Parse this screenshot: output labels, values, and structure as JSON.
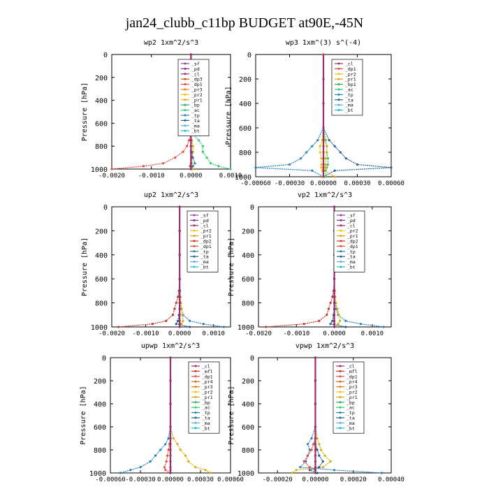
{
  "title": "jan24_clubb_c11bp  BUDGET at90E,-45N",
  "colors": {
    "_sf": "#8e44ad",
    "_pd": "#8e2c8e",
    "_cl": "#9b2d6b",
    "_dp2": "#c0392b",
    "_dp1": "#e74c3c",
    "_dp3": "#d35400",
    "_pr3": "#e67e22",
    "_pr2": "#f1c40f",
    "_pr1": "#d4ac0d",
    "_bp": "#27ae60",
    "_bp1": "#27ae60",
    "_ac": "#2ecc71",
    "_tp": "#2980b9",
    "_ta": "#1f618d",
    "_ma": "#5dade2",
    "_bt": "#17becf",
    "_mfl": "#c0392b",
    "_dp4": "#a93226",
    "_pr4": "#ca6f1e",
    "_dp2b": "#2ecc71",
    "_dp1b": "#58d68d"
  },
  "chart_data": [
    {
      "type": "line",
      "title": "wp2   1xm^2/s^3",
      "ylabel": "Pressure [hPa]",
      "ylim": [
        1000,
        0
      ],
      "xlim": [
        -0.002,
        0.001
      ],
      "xticks": [
        -0.002,
        -0.001,
        0.0,
        0.001
      ],
      "xtick_labels": [
        "-0.0020",
        "-0.0010",
        "0.0000",
        "0.0010"
      ],
      "yticks": [
        0,
        200,
        400,
        600,
        800,
        1000
      ],
      "ytick_labels": [
        "0",
        "200",
        "400",
        "600",
        "800",
        "1000"
      ],
      "legend": [
        "_sf",
        "_pd",
        "_cl",
        "_dp3",
        "_dp1",
        "_pr3",
        "_pr2",
        "_pr1",
        "_bp",
        "_ac",
        "_tp",
        "_ta",
        "_ma",
        "_bt"
      ],
      "pressure": [
        0,
        200,
        400,
        600,
        700,
        750,
        800,
        850,
        900,
        950,
        975,
        1000
      ],
      "series": [
        {
          "name": "_dp1",
          "values": [
            0,
            0,
            0,
            0,
            0,
            -5e-05,
            -0.0001,
            -0.0002,
            -0.0004,
            -0.0007,
            -0.0012,
            -0.002
          ]
        },
        {
          "name": "_ac",
          "values": [
            0,
            0,
            0,
            0,
            5e-05,
            0.0002,
            0.0003,
            0.0003,
            0.0004,
            0.0005,
            0.0007,
            0.001
          ]
        },
        {
          "name": "_pr1",
          "values": [
            0,
            0,
            0,
            0,
            0,
            2e-05,
            5e-05,
            5e-05,
            3e-05,
            2e-05,
            3e-05,
            5e-05
          ]
        },
        {
          "name": "_tp",
          "values": [
            0,
            0,
            0,
            0,
            0,
            0,
            0,
            2e-05,
            5e-05,
            0.0001,
            5e-05,
            0
          ]
        },
        {
          "name": "_cl",
          "values": [
            0,
            0,
            0,
            0,
            0,
            0,
            0,
            0,
            2e-05,
            0,
            -2e-05,
            0
          ]
        }
      ]
    },
    {
      "type": "line",
      "title": "wp3   1xm^(3) s^(-4)",
      "ylabel": "Pressure [hPa]",
      "ylim": [
        1000,
        0
      ],
      "xlim": [
        -0.0006,
        0.0006
      ],
      "xticks": [
        -0.0006,
        -0.0003,
        0.0,
        0.0003,
        0.0006
      ],
      "xtick_labels": [
        "-0.00060",
        "-0.00030",
        "0.00000",
        "0.00030",
        "0.00060"
      ],
      "yticks": [
        0,
        200,
        400,
        600,
        800,
        1000
      ],
      "ytick_labels": [
        "0",
        "200",
        "400",
        "600",
        "800",
        "1000"
      ],
      "legend": [
        "_cl",
        "_dp1",
        "_pr2",
        "_pr1",
        "_bp1",
        "_ac",
        "_tp",
        "_ta",
        "_ma",
        "_bt"
      ],
      "pressure": [
        0,
        200,
        400,
        600,
        700,
        750,
        800,
        850,
        900,
        925,
        950,
        1000
      ],
      "series": [
        {
          "name": "_ta",
          "values": [
            0,
            0,
            0,
            0,
            5e-05,
            0.0001,
            0.00015,
            0.0002,
            0.0003,
            0.0006,
            0.0001,
            0
          ]
        },
        {
          "name": "_tp",
          "values": [
            0,
            0,
            0,
            0,
            -5e-05,
            -0.0001,
            -0.00015,
            -0.0002,
            -0.0003,
            -0.0006,
            -0.0001,
            0
          ]
        },
        {
          "name": "_ac",
          "values": [
            0,
            0,
            0,
            0,
            2e-05,
            3e-05,
            3e-05,
            4e-05,
            4e-05,
            3e-05,
            2e-05,
            2e-05
          ]
        },
        {
          "name": "_pr1",
          "values": [
            0,
            0,
            0,
            0,
            1e-05,
            3e-05,
            3e-05,
            2e-05,
            2e-05,
            2e-05,
            1e-05,
            0.0001
          ]
        },
        {
          "name": "_pr2",
          "values": [
            0,
            0,
            0,
            0,
            -1e-05,
            -3e-05,
            -3e-05,
            -2e-05,
            -2e-05,
            -2e-05,
            -1e-05,
            0
          ]
        },
        {
          "name": "_dp1",
          "values": [
            0,
            0,
            0,
            0,
            0,
            0,
            0,
            0,
            0,
            0,
            0,
            0
          ]
        }
      ]
    },
    {
      "type": "line",
      "title": "up2   1xm^2/s^3",
      "ylabel": "Pressure [hPa]",
      "ylim": [
        1000,
        0
      ],
      "xlim": [
        -0.002,
        0.0015
      ],
      "xticks": [
        -0.002,
        -0.001,
        0.0,
        0.001
      ],
      "xtick_labels": [
        "-0.0020",
        "-0.0010",
        "0.0000",
        "0.0010"
      ],
      "yticks": [
        0,
        200,
        400,
        600,
        800,
        1000
      ],
      "ytick_labels": [
        "0",
        "200",
        "400",
        "600",
        "800",
        "1000"
      ],
      "legend": [
        "_sf",
        "_pd",
        "_cl",
        "_pr2",
        "_pr1",
        "_dp2",
        "_dp1",
        "_tp",
        "_ta",
        "_ma",
        "_bt"
      ],
      "pressure": [
        0,
        200,
        400,
        600,
        700,
        750,
        800,
        850,
        900,
        950,
        975,
        1000
      ],
      "series": [
        {
          "name": "_dp2",
          "values": [
            0,
            0,
            0,
            0,
            -2e-05,
            -5e-05,
            -0.0001,
            -0.00015,
            -0.0002,
            -0.0004,
            -0.0008,
            -0.0018
          ]
        },
        {
          "name": "_tp",
          "values": [
            0,
            0,
            0,
            0,
            1e-05,
            2e-05,
            3e-05,
            5e-05,
            0.0001,
            0.0003,
            0.0007,
            0.0013
          ]
        },
        {
          "name": "_pr1",
          "values": [
            0,
            0,
            0,
            0,
            0,
            2e-05,
            4e-05,
            6e-05,
            8e-05,
            0.0001,
            5e-05,
            0
          ]
        },
        {
          "name": "_ta",
          "values": [
            0,
            0,
            0,
            0,
            0,
            0,
            0,
            0,
            -2e-05,
            -5e-05,
            -0.0001,
            0.0003
          ]
        },
        {
          "name": "_pd",
          "values": [
            0,
            0,
            0,
            0,
            0,
            0,
            0,
            0,
            0,
            0,
            0,
            0
          ]
        }
      ]
    },
    {
      "type": "line",
      "title": "vp2   1xm^2/s^3",
      "ylabel": "Pressure [hPa]",
      "ylim": [
        1000,
        0
      ],
      "xlim": [
        -0.002,
        0.0015
      ],
      "xticks": [
        -0.002,
        -0.001,
        0.0,
        0.001
      ],
      "xtick_labels": [
        "-0.0020",
        "-0.0010",
        "0.0000",
        "0.0010"
      ],
      "yticks": [
        0,
        200,
        400,
        600,
        800,
        1000
      ],
      "ytick_labels": [
        "0",
        "200",
        "400",
        "600",
        "800",
        "1000"
      ],
      "legend": [
        "_sf",
        "_pd",
        "_cl",
        "_pr2",
        "_pr1",
        "_dp2",
        "_dp1",
        "_tp",
        "_ta",
        "_ma",
        "_bt"
      ],
      "pressure": [
        0,
        200,
        400,
        600,
        700,
        750,
        800,
        850,
        900,
        950,
        975,
        1000
      ],
      "series": [
        {
          "name": "_dp2",
          "values": [
            0,
            0,
            0,
            0,
            -2e-05,
            -5e-05,
            -0.0001,
            -0.00015,
            -0.0002,
            -0.0004,
            -0.0008,
            -0.0018
          ]
        },
        {
          "name": "_tp",
          "values": [
            0,
            0,
            0,
            0,
            1e-05,
            2e-05,
            3e-05,
            5e-05,
            0.0001,
            0.0003,
            0.0007,
            0.0013
          ]
        },
        {
          "name": "_pr1",
          "values": [
            0,
            0,
            0,
            0,
            0,
            2e-05,
            4e-05,
            8e-05,
            0.00012,
            0.00015,
            0.0001,
            0
          ]
        },
        {
          "name": "_ta",
          "values": [
            0,
            0,
            0,
            0,
            0,
            0,
            0,
            0,
            -2e-05,
            -5e-05,
            -0.0001,
            0.0003
          ]
        },
        {
          "name": "_pd",
          "values": [
            0,
            0,
            0,
            0,
            0,
            0,
            0,
            0,
            0,
            0,
            0,
            0
          ]
        }
      ]
    },
    {
      "type": "line",
      "title": "upwp   1xm^2/s^3",
      "ylabel": "Pressure [hPa]",
      "ylim": [
        1000,
        0
      ],
      "xlim": [
        -0.0006,
        0.0006
      ],
      "xticks": [
        -0.0006,
        -0.0003,
        0.0,
        0.0003,
        0.0006
      ],
      "xtick_labels": [
        "-0.00060",
        "-0.00030",
        "0.00000",
        "0.00030",
        "0.00060"
      ],
      "yticks": [
        0,
        200,
        400,
        600,
        800,
        1000
      ],
      "ytick_labels": [
        "0",
        "200",
        "400",
        "600",
        "800",
        "1000"
      ],
      "legend": [
        "_cl",
        "_mfl",
        "_dp1",
        "_pr4",
        "_pr3",
        "_pr2",
        "_pr1",
        "_bp",
        "_ac",
        "_tp",
        "_ta",
        "_ma",
        "_bt"
      ],
      "pressure": [
        0,
        200,
        400,
        600,
        700,
        750,
        800,
        850,
        900,
        950,
        975,
        1000
      ],
      "series": [
        {
          "name": "_tp",
          "values": [
            0,
            0,
            0,
            0,
            -2e-05,
            -5e-05,
            -0.0001,
            -0.00015,
            -0.0002,
            -0.0003,
            -0.0004,
            -0.0005
          ]
        },
        {
          "name": "_pr1",
          "values": [
            0,
            0,
            0,
            0,
            3e-05,
            7e-05,
            0.0001,
            0.00015,
            0.00018,
            0.00025,
            0.00035,
            0.0004
          ]
        },
        {
          "name": "_dp1",
          "values": [
            0,
            0,
            0,
            0,
            0,
            -1e-05,
            -2e-05,
            -3e-05,
            -4e-05,
            -6e-05,
            -5e-05,
            0
          ]
        },
        {
          "name": "_cl",
          "values": [
            0,
            0,
            0,
            0,
            0,
            0,
            0,
            0,
            0,
            0,
            0,
            0
          ]
        }
      ]
    },
    {
      "type": "line",
      "title": "vpwp   1xm^2/s^3",
      "ylabel": "Pressure [hPa]",
      "ylim": [
        1000,
        0
      ],
      "xlim": [
        -0.0003,
        0.0004
      ],
      "xticks": [
        -0.0002,
        0.0,
        0.0002,
        0.0004
      ],
      "xtick_labels": [
        "-0.00020",
        "0.00000",
        "0.00020",
        "0.00040"
      ],
      "yticks": [
        0,
        200,
        400,
        600,
        800,
        1000
      ],
      "ytick_labels": [
        "0",
        "200",
        "400",
        "600",
        "800",
        "1000"
      ],
      "legend": [
        "_cl",
        "_mfl",
        "_dp1",
        "_pr4",
        "_pr3",
        "_pr2",
        "_pr1",
        "_bp",
        "_ac",
        "_tp",
        "_ta",
        "_ma",
        "_bt"
      ],
      "pressure": [
        0,
        200,
        400,
        600,
        700,
        750,
        800,
        850,
        900,
        950,
        975,
        1000
      ],
      "series": [
        {
          "name": "_tp",
          "values": [
            0,
            0,
            0,
            0,
            -2e-05,
            -4e-05,
            -3e-05,
            -4e-05,
            -5e-05,
            -8e-05,
            0.0001,
            0.00035
          ]
        },
        {
          "name": "_pr1",
          "values": [
            0,
            0,
            0,
            0,
            1e-05,
            2e-05,
            3e-05,
            5e-05,
            8e-05,
            4e-05,
            -0.0001,
            -0.00012
          ]
        },
        {
          "name": "_dp1",
          "values": [
            0,
            0,
            0,
            0,
            0,
            -1e-05,
            -2e-05,
            -4e-05,
            -6e-05,
            -3e-05,
            0,
            0
          ]
        },
        {
          "name": "_ta",
          "values": [
            0,
            0,
            0,
            0,
            0,
            0,
            1e-05,
            2e-05,
            4e-05,
            2e-05,
            -3e-05,
            1e-05
          ]
        },
        {
          "name": "_cl",
          "values": [
            0,
            0,
            0,
            0,
            0,
            0,
            0,
            0,
            0,
            0,
            0,
            0
          ]
        }
      ]
    }
  ]
}
